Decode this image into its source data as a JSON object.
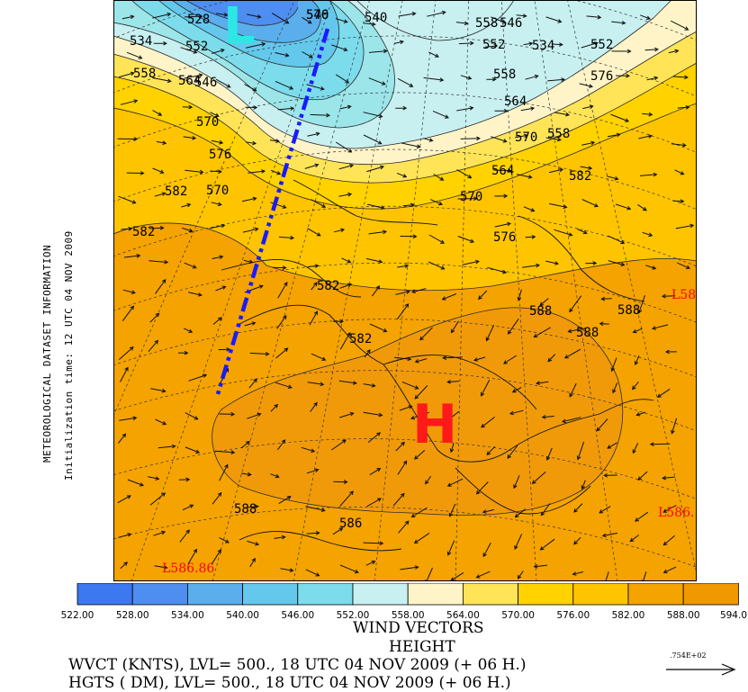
{
  "side_text": {
    "line1": "METEOROLOGICAL DATASET INFORMATION",
    "line2": "Initialization time: 12 UTC 04 NOV 2009"
  },
  "map": {
    "low_symbol": "L",
    "high_symbol": "H",
    "contour_labels": [
      "528",
      "540",
      "534",
      "552",
      "546",
      "558",
      "564",
      "570",
      "576",
      "582",
      "582",
      "570",
      "576",
      "540",
      "558",
      "552",
      "546",
      "534",
      "552",
      "558",
      "564",
      "570",
      "558",
      "564",
      "576",
      "570",
      "582",
      "576",
      "582",
      "582",
      "588",
      "588",
      "588",
      "586",
      "588"
    ],
    "secondary_lows": [
      "L58",
      "L586.",
      "L586.86"
    ],
    "colors": {
      "cyclone_label": "#2ee6e6",
      "anticyclone_label": "#ff1a1a",
      "trough_line": "#1a1aff",
      "secondary_low_label": "#ff0000"
    }
  },
  "colorbar": {
    "colors": [
      "#3c78f0",
      "#4e8ef0",
      "#5aaeec",
      "#64c8ec",
      "#7cdcec",
      "#c8f0f0",
      "#fff4c8",
      "#ffe458",
      "#ffd200",
      "#ffc400",
      "#f5a300",
      "#f09800"
    ],
    "labels": [
      "522.00",
      "528.00",
      "534.00",
      "540.00",
      "546.00",
      "552.00",
      "558.00",
      "564.00",
      "570.00",
      "576.00",
      "582.00",
      "588.00",
      "594.0"
    ]
  },
  "captions": {
    "line1": "WIND VECTORS",
    "line2": "HEIGHT",
    "line3": "WVCT (KNTS),  LVL= 500., 18 UTC 04 NOV 2009 (+ 06 H.)",
    "line4": "HGTS ( DM),  LVL= 500., 18 UTC 04 NOV 2009 (+ 06 H.)",
    "ref_vector_label": ".754E+02"
  }
}
